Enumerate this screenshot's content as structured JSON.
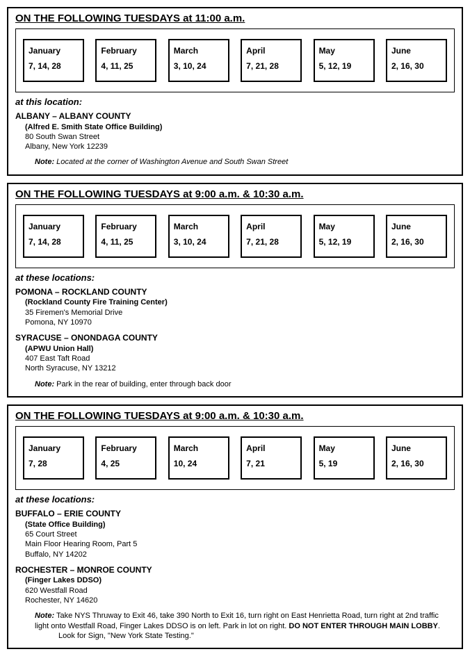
{
  "sections": [
    {
      "title": "ON THE FOLLOWING TUESDAYS at 11:00 a.m.",
      "months": [
        {
          "name": "January",
          "dates": "7, 14, 28"
        },
        {
          "name": "February",
          "dates": "4, 11, 25"
        },
        {
          "name": "March",
          "dates": "3, 10, 24"
        },
        {
          "name": "April",
          "dates": "7, 21, 28"
        },
        {
          "name": "May",
          "dates": "5, 12, 19"
        },
        {
          "name": "June",
          "dates": "2, 16, 30"
        }
      ],
      "loc_heading": "at this location:",
      "locations": [
        {
          "title": "ALBANY – ALBANY COUNTY",
          "sub": "(Alfred E. Smith State Office Building)",
          "lines": [
            "80 South Swan Street",
            "Albany, New York 12239"
          ]
        }
      ],
      "note_label": "Note:",
      "note_text_italic": "Located at the corner of Washington Avenue and South Swan Street"
    },
    {
      "title": "ON THE FOLLOWING TUESDAYS at 9:00 a.m. & 10:30 a.m.",
      "months": [
        {
          "name": "January",
          "dates": "7, 14, 28"
        },
        {
          "name": "February",
          "dates": "4, 11, 25"
        },
        {
          "name": "March",
          "dates": "3, 10, 24"
        },
        {
          "name": "April",
          "dates": "7, 21, 28"
        },
        {
          "name": "May",
          "dates": "5, 12, 19"
        },
        {
          "name": "June",
          "dates": "2, 16, 30"
        }
      ],
      "loc_heading": "at these locations:",
      "locations": [
        {
          "title": "POMONA – ROCKLAND COUNTY",
          "sub": "(Rockland County Fire Training Center)",
          "lines": [
            "35 Firemen's Memorial Drive",
            "Pomona, NY 10970"
          ]
        },
        {
          "title": "SYRACUSE – ONONDAGA COUNTY",
          "sub": "(APWU Union Hall)",
          "lines": [
            "407 East Taft Road",
            "North Syracuse, NY 13212"
          ]
        }
      ],
      "note_label": "Note:",
      "note_text_plain": "Park in the rear of building, enter through back door"
    },
    {
      "title": "ON THE FOLLOWING TUESDAYS at 9:00 a.m. & 10:30 a.m.",
      "months": [
        {
          "name": "January",
          "dates": "7, 28"
        },
        {
          "name": "February",
          "dates": "4, 25"
        },
        {
          "name": "March",
          "dates": "10, 24"
        },
        {
          "name": "April",
          "dates": "7, 21"
        },
        {
          "name": "May",
          "dates": "5, 19"
        },
        {
          "name": "June",
          "dates": "2, 16, 30"
        }
      ],
      "loc_heading": "at these locations:",
      "locations": [
        {
          "title": "BUFFALO – ERIE COUNTY",
          "sub": "(State Office Building)",
          "lines": [
            "65 Court Street",
            "Main Floor Hearing Room, Part 5",
            "Buffalo, NY 14202"
          ]
        },
        {
          "title": "ROCHESTER – MONROE COUNTY",
          "sub": "(Finger Lakes DDSO)",
          "lines": [
            "620 Westfall Road",
            "Rochester, NY 14620"
          ]
        }
      ],
      "note_label": "Note:",
      "note_pre": "Take NYS Thruway to Exit 46, take 390 North to Exit 16, turn right on East Henrietta Road, turn right at 2nd traffic light onto Westfall Road, Finger Lakes DDSO is on left. Park in lot on right. ",
      "note_bold": "DO NOT ENTER THROUGH MAIN LOBBY",
      "note_post": ".",
      "note_line2": "Look for Sign, \"New York State Testing.\""
    }
  ]
}
